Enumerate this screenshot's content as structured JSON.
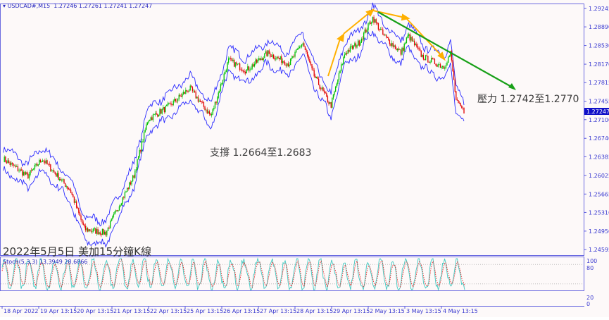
{
  "header": {
    "symbol": "USDCAD#,M15",
    "ohlc": "1.27246 1.27261 1.27241 1.27247"
  },
  "stoch": {
    "label": "Stoch(5,3,3)",
    "main": "13.3949",
    "signal": "28.6866",
    "levels": [
      "100",
      "80",
      "20",
      "0"
    ]
  },
  "annotations": {
    "resistance": "壓力 1.2742至1.2770",
    "support": "支撐 1.2664至1.2683",
    "caption": "2022年5月5日 美加15分鐘K線"
  },
  "colors": {
    "bull": "#00c000",
    "bear": "#e00000",
    "band": "#2a2aff",
    "stoch_main": "#40c8c0",
    "stoch_signal": "#e02020",
    "trend_orange": "#ffb000",
    "trend_green": "#18a018",
    "axis": "#5a5ae0"
  },
  "chart_data": {
    "type": "line",
    "title": "",
    "price_ticks": [
      "1.29245",
      "1.28890",
      "1.28530",
      "1.28170",
      "1.27815",
      "1.27455",
      "1.27100",
      "1.26740",
      "1.26385",
      "1.26025",
      "1.25665",
      "1.25310",
      "1.24950",
      "1.24595"
    ],
    "current_price": "1.27247",
    "ylim": [
      1.24595,
      1.29245
    ],
    "time_ticks": [
      "18 Apr 2022",
      "19 Apr 13:15",
      "20 Apr 13:15",
      "21 Apr 13:15",
      "22 Apr 13:15",
      "25 Apr 13:15",
      "26 Apr 13:15",
      "27 Apr 13:15",
      "28 Apr 13:15",
      "29 Apr 13:15",
      "2 May 13:15",
      "3 May 13:15",
      "4 May 13:15"
    ],
    "series": [
      {
        "points": [
          [
            "2022-04-18 14:00",
            1.2635
          ],
          [
            "2022-04-19 06:00",
            1.2601
          ],
          [
            "2022-04-19 15:30",
            1.2635
          ],
          [
            "2022-04-20 10:00",
            1.2574
          ],
          [
            "2022-04-20 19:15",
            1.2499
          ],
          [
            "2022-04-21 09:15",
            1.2492
          ],
          [
            "2022-04-21 18:15",
            1.2547
          ],
          [
            "2022-04-22 03:30",
            1.2601
          ],
          [
            "2022-04-22 12:45",
            1.271
          ],
          [
            "2022-04-25 02:45",
            1.2737
          ],
          [
            "2022-04-25 16:15",
            1.2771
          ],
          [
            "2022-04-26 06:15",
            1.2717
          ],
          [
            "2022-04-26 17:45",
            1.2825
          ],
          [
            "2022-04-27 05:15",
            1.2805
          ],
          [
            "2022-04-27 19:15",
            1.2839
          ],
          [
            "2022-04-28 09:15",
            1.2818
          ],
          [
            "2022-04-28 18:15",
            1.2859
          ],
          [
            "2022-04-29 01:15",
            1.2798
          ],
          [
            "2022-04-29 12:45",
            1.2737
          ],
          [
            "2022-04-29 22:00",
            1.2839
          ],
          [
            "2022-05-02 07:15",
            1.2859
          ],
          [
            "2022-05-02 16:15",
            1.2907
          ],
          [
            "2022-05-02 23:15",
            1.2873
          ],
          [
            "2022-05-03 10:45",
            1.2839
          ],
          [
            "2022-05-03 15:30",
            1.2873
          ],
          [
            "2022-05-04 00:45",
            1.2832
          ],
          [
            "2022-05-04 14:45",
            1.2812
          ],
          [
            "2022-05-04 19:15",
            1.2839
          ],
          [
            "2022-05-04 23:00",
            1.2744
          ],
          [
            "2022-05-05 04:30",
            1.2725
          ]
        ]
      }
    ]
  }
}
